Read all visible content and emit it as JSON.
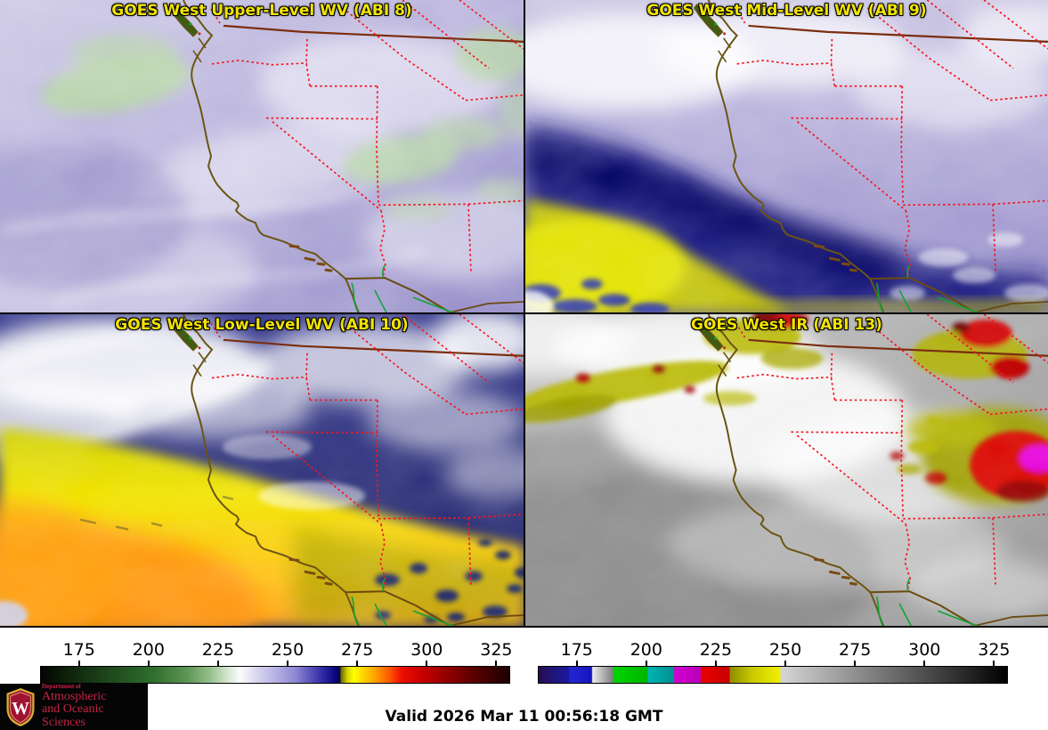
{
  "panels": [
    {
      "title": "GOES West Upper-Level WV (ABI 8)"
    },
    {
      "title": "GOES West Mid-Level WV (ABI 9)"
    },
    {
      "title": "GOES West Low-Level WV (ABI 10)"
    },
    {
      "title": "GOES West IR (ABI 13)"
    }
  ],
  "styles": {
    "title_color": "#f2e300",
    "panel_divider_color": "#000000"
  },
  "colorbars": [
    {
      "name": "wv-temperature-scale",
      "tick_labels": [
        "175",
        "200",
        "225",
        "250",
        "275",
        "300",
        "325"
      ],
      "tick_values": [
        175,
        200,
        225,
        250,
        275,
        300,
        325
      ],
      "scale_range": [
        161,
        330
      ],
      "gradient_stops": [
        [
          "#050505",
          0.0
        ],
        [
          "#0c1f0a",
          0.05
        ],
        [
          "#1e4a1c",
          0.15
        ],
        [
          "#2f6e2d",
          0.24
        ],
        [
          "#5c9455",
          0.31
        ],
        [
          "#94bf8a",
          0.36
        ],
        [
          "#d8e8d0",
          0.4
        ],
        [
          "#fbfbfd",
          0.425
        ],
        [
          "#d5d2ee",
          0.465
        ],
        [
          "#b3aee2",
          0.505
        ],
        [
          "#8d86d2",
          0.545
        ],
        [
          "#5a53bb",
          0.575
        ],
        [
          "#2a24a0",
          0.605
        ],
        [
          "#0b0680",
          0.628
        ],
        [
          "#05054a",
          0.638
        ],
        [
          "#6e6e00",
          0.641
        ],
        [
          "#d8d800",
          0.655
        ],
        [
          "#ffff00",
          0.668
        ],
        [
          "#ffd000",
          0.69
        ],
        [
          "#ff9d00",
          0.715
        ],
        [
          "#ff5500",
          0.745
        ],
        [
          "#ee0f00",
          0.77
        ],
        [
          "#cc0000",
          0.81
        ],
        [
          "#990000",
          0.86
        ],
        [
          "#5e0000",
          0.92
        ],
        [
          "#1c0000",
          1.0
        ]
      ]
    },
    {
      "name": "ir-temperature-scale",
      "tick_labels": [
        "175",
        "200",
        "225",
        "250",
        "275",
        "300",
        "325"
      ],
      "tick_values": [
        175,
        200,
        225,
        250,
        275,
        300,
        325
      ],
      "scale_range": [
        161,
        330
      ],
      "gradient_stops": [
        [
          "#2a0a4a",
          0.0
        ],
        [
          "#23136e",
          0.02
        ],
        [
          "#1a1a9e",
          0.064
        ],
        [
          "#2525d2",
          0.066
        ],
        [
          "#1515c0",
          0.113
        ],
        [
          "#ececec",
          0.115
        ],
        [
          "#7f7f7f",
          0.158
        ],
        [
          "#00d400",
          0.16
        ],
        [
          "#00b400",
          0.232
        ],
        [
          "#00b4b4",
          0.234
        ],
        [
          "#009090",
          0.288
        ],
        [
          "#d400d4",
          0.29
        ],
        [
          "#b800b8",
          0.345
        ],
        [
          "#e80000",
          0.347
        ],
        [
          "#c80000",
          0.407
        ],
        [
          "#8f8f00",
          0.409
        ],
        [
          "#c8c800",
          0.455
        ],
        [
          "#f0f000",
          0.515
        ],
        [
          "#d6d6d6",
          0.517
        ],
        [
          "#000000",
          1.0
        ]
      ]
    }
  ],
  "map_overlay": {
    "coastline_color": "#6b5514",
    "state_border_color": "#f51622",
    "country_border_color": "#7a2e0e",
    "river_color": "#12a336"
  },
  "footer": {
    "valid_label": "Valid 2026 Mar 11 00:56:18 GMT"
  },
  "logo": {
    "line1": "Department of",
    "line2": "Atmospheric",
    "line3": "and Oceanic Sciences",
    "crest_letter": "W"
  }
}
